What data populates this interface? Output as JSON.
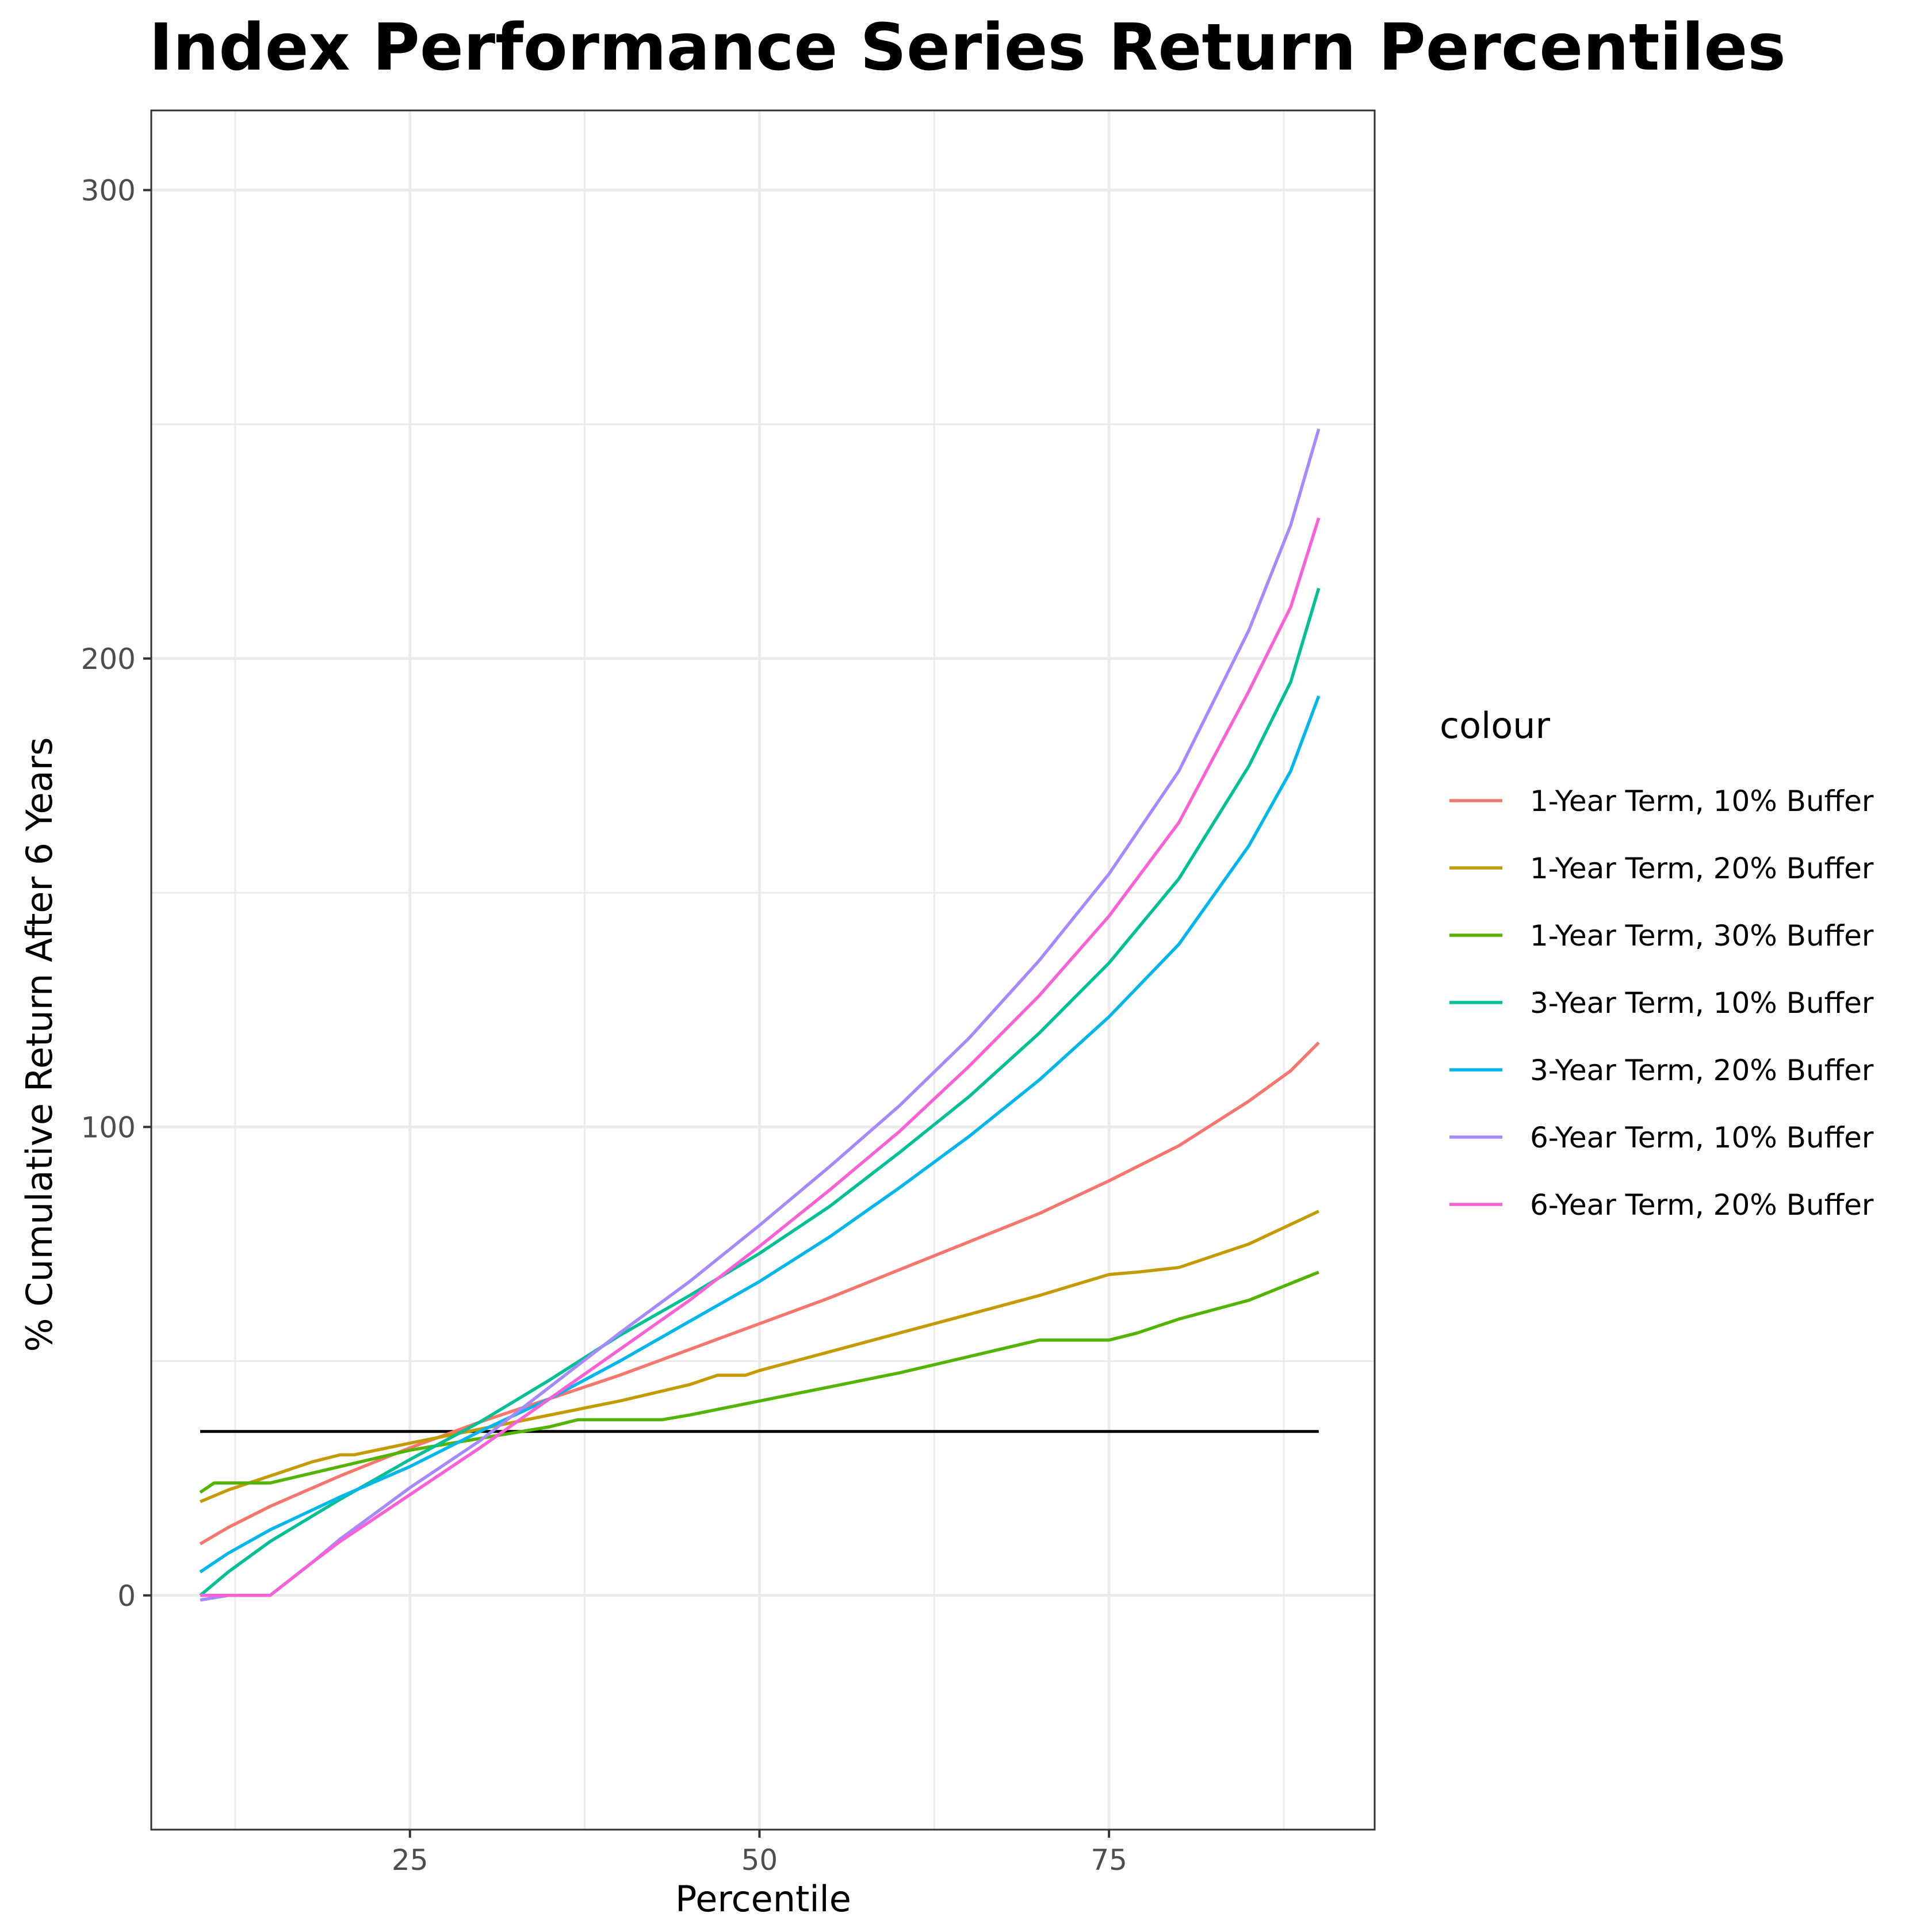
{
  "chart_data": {
    "type": "line",
    "title": "Index Performance Series Return Percentiles",
    "xlabel": "Percentile",
    "ylabel": "% Cumulative Return After 6 Years",
    "xlim": [
      6.5,
      94
    ],
    "ylim": [
      -50,
      317
    ],
    "x_ticks": [
      25,
      50,
      75
    ],
    "y_ticks": [
      0,
      100,
      200,
      300
    ],
    "x_minor_ticks": [
      12.5,
      37.5,
      62.5,
      87.5
    ],
    "y_minor_ticks": [
      -50,
      50,
      150,
      250
    ],
    "grid": true,
    "legend": {
      "title": "colour",
      "position": "right"
    },
    "reference_line": {
      "y": 35,
      "x": [
        10,
        90
      ],
      "color": "#000000"
    },
    "series": [
      {
        "name": "1-Year Term, 10% Buffer",
        "color": "#F8766D",
        "x": [
          10,
          12,
          15,
          20,
          25,
          30,
          35,
          40,
          45,
          50,
          55,
          60,
          65,
          70,
          75,
          80,
          85,
          88,
          90
        ],
        "y": [
          11,
          14.5,
          19,
          25.5,
          31.5,
          37,
          42,
          47,
          52.5,
          58,
          63.5,
          69.5,
          75.5,
          81.5,
          88.5,
          96,
          105.5,
          112,
          118
        ]
      },
      {
        "name": "1-Year Term, 20% Buffer",
        "color": "#C49A00",
        "x": [
          10,
          12,
          15,
          18,
          20,
          21,
          25,
          30,
          35,
          40,
          45,
          47,
          49,
          50,
          55,
          60,
          65,
          70,
          75,
          77,
          80,
          85,
          90
        ],
        "y": [
          20,
          22.5,
          25.5,
          28.5,
          30,
          30,
          32.5,
          35.5,
          38.5,
          41.5,
          45,
          47,
          47,
          48,
          52,
          56,
          60,
          64,
          68.5,
          69,
          70,
          75,
          82
        ]
      },
      {
        "name": "1-Year Term, 30% Buffer",
        "color": "#53B400",
        "x": [
          10,
          11,
          13,
          15,
          20,
          25,
          30,
          35,
          37,
          40,
          43,
          45,
          50,
          55,
          60,
          65,
          70,
          72,
          75,
          77,
          80,
          85,
          90
        ],
        "y": [
          22,
          24,
          24,
          24,
          27.5,
          31,
          33.5,
          36,
          37.5,
          37.5,
          37.5,
          38.5,
          41.5,
          44.5,
          47.5,
          51,
          54.5,
          54.5,
          54.5,
          56,
          59,
          63,
          69
        ]
      },
      {
        "name": "3-Year Term, 10% Buffer",
        "color": "#00C094",
        "x": [
          10,
          12,
          15,
          20,
          25,
          30,
          35,
          40,
          45,
          50,
          55,
          60,
          65,
          70,
          75,
          80,
          85,
          88,
          90
        ],
        "y": [
          0,
          5,
          11.5,
          20.5,
          29,
          37,
          46,
          55.5,
          64,
          73,
          83,
          94.5,
          106.5,
          120,
          135,
          153,
          177,
          195,
          215
        ]
      },
      {
        "name": "3-Year Term, 20% Buffer",
        "color": "#00B6EB",
        "x": [
          10,
          12,
          15,
          20,
          25,
          30,
          35,
          40,
          45,
          50,
          55,
          60,
          65,
          70,
          75,
          80,
          85,
          88,
          90
        ],
        "y": [
          5,
          9,
          14,
          21,
          27.5,
          35,
          42,
          50,
          58.5,
          67,
          76.5,
          87,
          98,
          110,
          123.5,
          139,
          160,
          176,
          192
        ]
      },
      {
        "name": "6-Year Term, 10% Buffer",
        "color": "#A58AFF",
        "x": [
          10,
          12,
          15,
          18,
          20,
          25,
          30,
          35,
          40,
          45,
          50,
          55,
          60,
          65,
          70,
          75,
          80,
          85,
          88,
          90
        ],
        "y": [
          -1,
          0,
          0,
          7,
          12,
          23,
          33,
          44.5,
          56,
          67,
          79,
          91.5,
          104.5,
          119,
          135.5,
          154,
          176,
          206,
          228.5,
          249
        ]
      },
      {
        "name": "6-Year Term, 20% Buffer",
        "color": "#FB61D7",
        "x": [
          10,
          12,
          15,
          18,
          20,
          25,
          30,
          35,
          40,
          45,
          50,
          55,
          60,
          65,
          70,
          75,
          80,
          85,
          88,
          90
        ],
        "y": [
          0,
          0,
          0,
          7,
          11.5,
          21.5,
          31.5,
          42,
          52.5,
          63,
          74.5,
          86.5,
          99,
          113,
          128,
          145,
          165,
          193,
          211,
          230
        ]
      }
    ]
  }
}
